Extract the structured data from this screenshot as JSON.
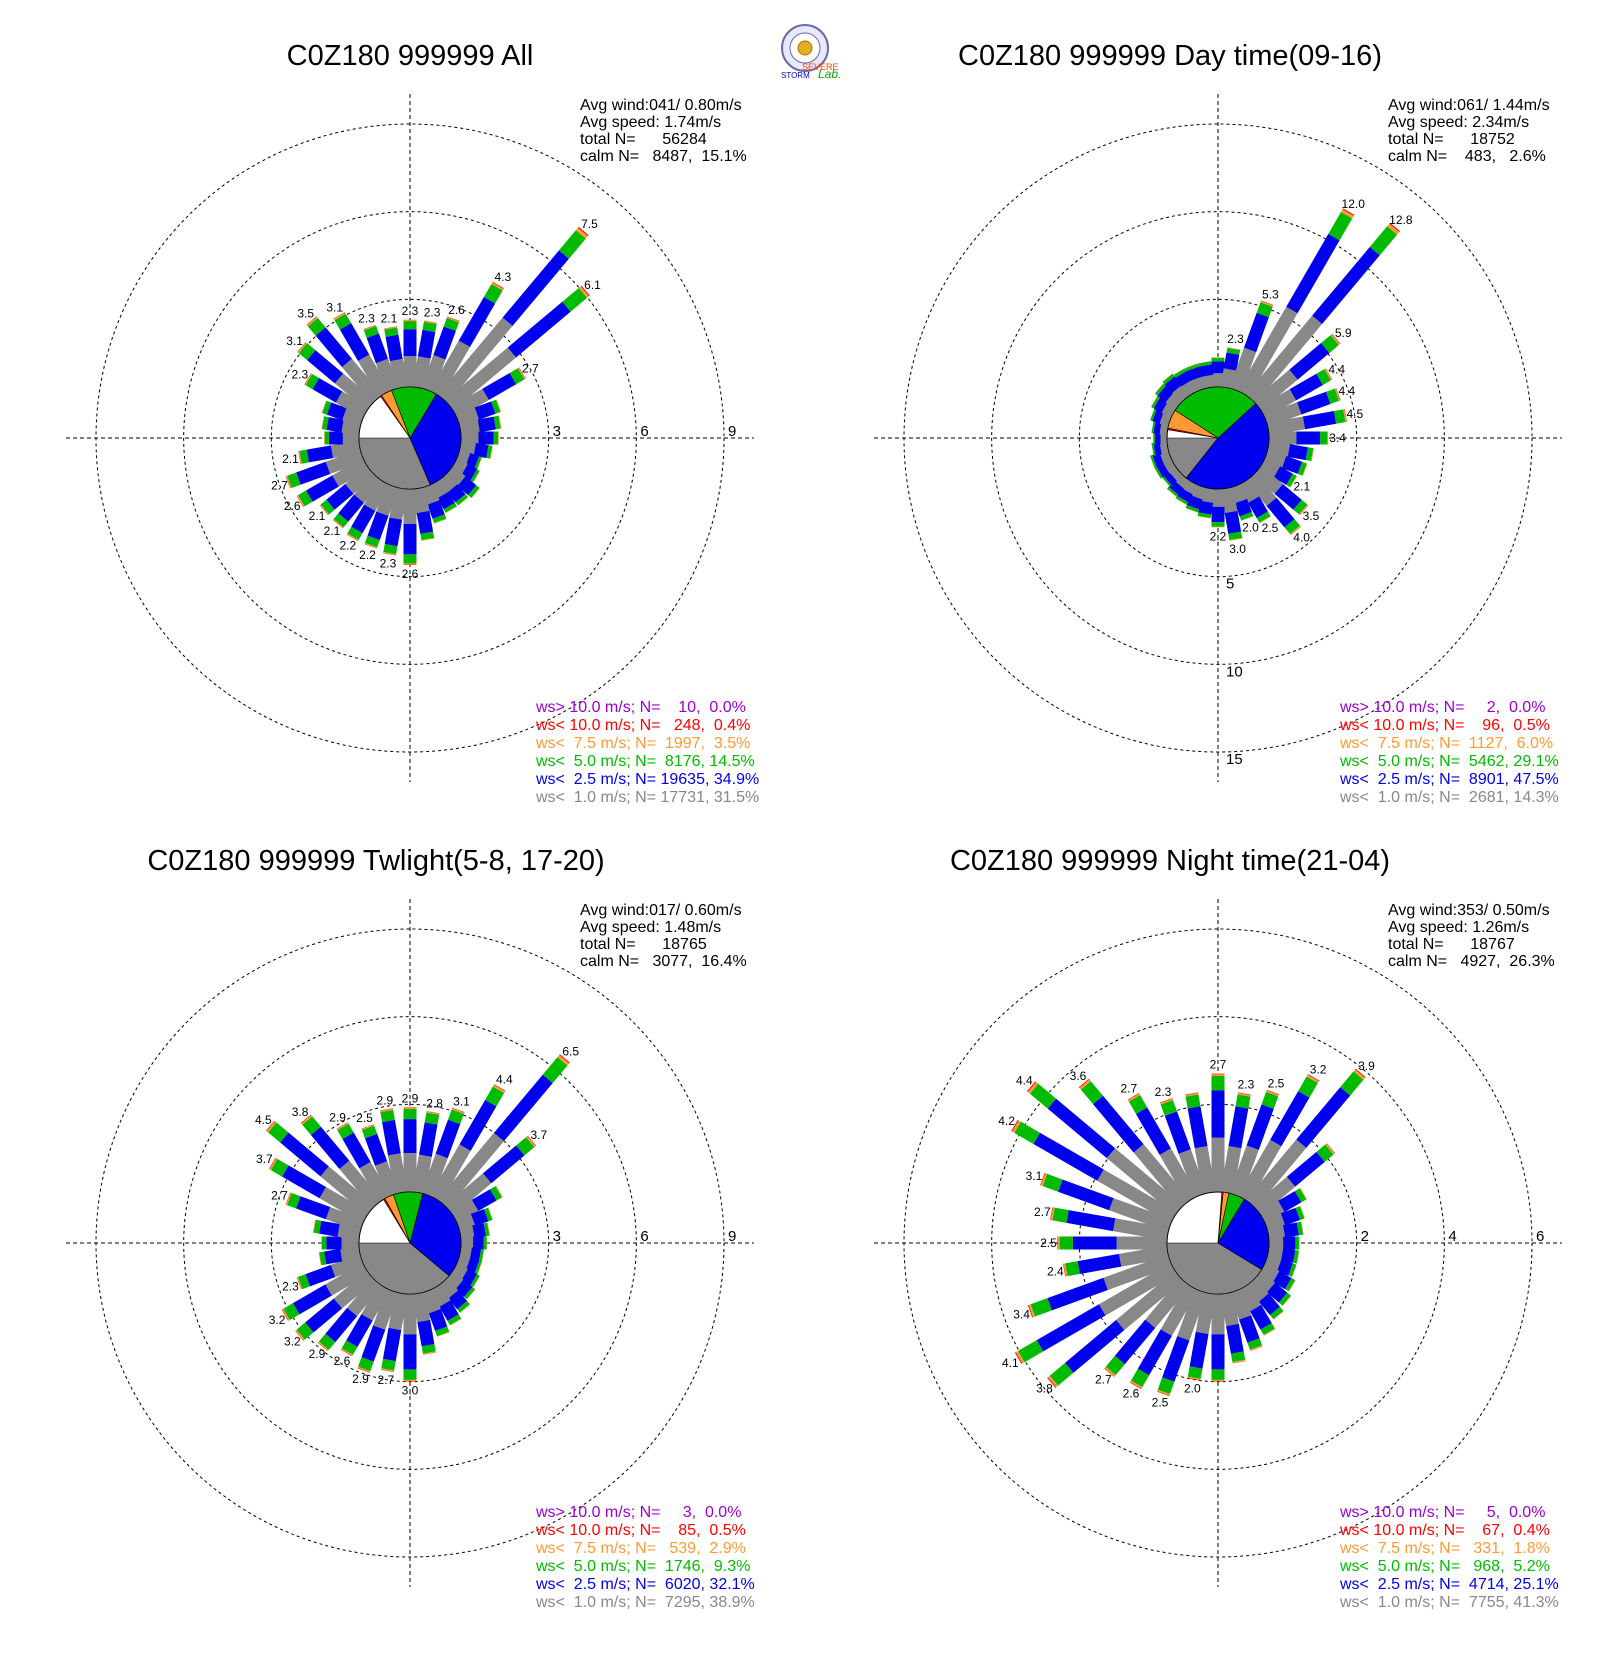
{
  "chart_data": [
    {
      "type": "wind-rose",
      "title": "C0Z180 999999 All",
      "rings": [
        3,
        6,
        9
      ],
      "stats": [
        "Avg wind:041/ 0.80m/s",
        "Avg speed: 1.74m/s",
        "total N=      56284",
        "calm N=   8487,  15.1%"
      ],
      "legend": [
        {
          "text": "ws> 10.0 m/s; N=    10,  0.0%",
          "color": "#9b00d3"
        },
        {
          "text": "ws< 10.0 m/s; N=   248,  0.4%",
          "color": "#ff0000"
        },
        {
          "text": "ws<  7.5 m/s; N=  1997,  3.5%",
          "color": "#ff9933"
        },
        {
          "text": "ws<  5.0 m/s; N=  8176, 14.5%",
          "color": "#00bb00"
        },
        {
          "text": "ws<  2.5 m/s; N= 19635, 34.9%",
          "color": "#0000ee"
        },
        {
          "text": "ws<  1.0 m/s; N= 17731, 31.5%",
          "color": "#888888"
        }
      ],
      "pie": [
        31.5,
        34.9,
        14.5,
        3.5,
        0.4,
        0.0
      ],
      "directions_deg": [
        0,
        10,
        20,
        30,
        40,
        50,
        60,
        70,
        80,
        90,
        100,
        110,
        120,
        130,
        140,
        150,
        160,
        170,
        180,
        190,
        200,
        210,
        220,
        230,
        240,
        250,
        260,
        270,
        280,
        290,
        300,
        310,
        320,
        330,
        340,
        350
      ],
      "values": [
        2.3,
        2.3,
        2.6,
        4.3,
        7.5,
        6.1,
        2.7,
        1.5,
        1.4,
        1.3,
        1.1,
        0.8,
        0.9,
        1.2,
        1.1,
        1.1,
        1.3,
        1.8,
        2.6,
        2.3,
        2.2,
        2.2,
        2.1,
        2.1,
        2.6,
        2.7,
        2.1,
        1.2,
        1.3,
        1.4,
        2.3,
        3.1,
        3.5,
        3.1,
        2.3,
        2.1
      ],
      "bar_labels": {
        "0": "2.3",
        "10": "2.3",
        "20": "2.6",
        "30": "4.3",
        "40": "7.5",
        "50": "6.1",
        "60": "2.7",
        "180": "2.6",
        "190": "2.3",
        "200": "2.2",
        "210": "2.2",
        "220": "2.1",
        "230": "2.1",
        "240": "2.6",
        "250": "2.7",
        "260": "2.1",
        "300": "2.3",
        "310": "3.1",
        "320": "3.5",
        "330": "3.1",
        "340": "2.3",
        "350": "2.1"
      }
    },
    {
      "type": "wind-rose",
      "title": "C0Z180 999999 Day time(09-16)",
      "rings": [
        5,
        10,
        15
      ],
      "stats": [
        "Avg wind:061/ 1.44m/s",
        "Avg speed: 2.34m/s",
        "total N=      18752",
        "calm N=    483,   2.6%"
      ],
      "legend": [
        {
          "text": "ws> 10.0 m/s; N=     2,  0.0%",
          "color": "#9b00d3"
        },
        {
          "text": "ws< 10.0 m/s; N=    96,  0.5%",
          "color": "#ff0000"
        },
        {
          "text": "ws<  7.5 m/s; N=  1127,  6.0%",
          "color": "#ff9933"
        },
        {
          "text": "ws<  5.0 m/s; N=  5462, 29.1%",
          "color": "#00bb00"
        },
        {
          "text": "ws<  2.5 m/s; N=  8901, 47.5%",
          "color": "#0000ee"
        },
        {
          "text": "ws<  1.0 m/s; N=  2681, 14.3%",
          "color": "#888888"
        }
      ],
      "pie": [
        14.3,
        47.5,
        29.1,
        6.0,
        0.5,
        0.0
      ],
      "directions_deg": [
        0,
        10,
        20,
        30,
        40,
        50,
        60,
        70,
        80,
        90,
        100,
        110,
        120,
        130,
        140,
        150,
        160,
        170,
        180,
        190,
        200,
        210,
        220,
        230,
        240,
        250,
        260,
        270,
        280,
        290,
        300,
        310,
        320,
        330,
        340,
        350
      ],
      "values": [
        1.7,
        2.3,
        5.3,
        12.0,
        12.8,
        5.9,
        4.4,
        4.4,
        4.5,
        3.4,
        2.6,
        2.4,
        2.1,
        3.5,
        4.0,
        2.5,
        2.0,
        3.0,
        2.2,
        1.7,
        1.5,
        1.3,
        1.2,
        1.0,
        1.1,
        1.1,
        0.9,
        0.8,
        0.9,
        1.1,
        1.3,
        1.5,
        1.6,
        1.5,
        1.5,
        1.5
      ],
      "bar_labels": {
        "10": "2.3",
        "20": "5.3",
        "30": "12.0",
        "40": "12.8",
        "50": "5.9",
        "60": "4.4",
        "70": "4.4",
        "80": "4.5",
        "90": "3.4",
        "120": "2.1",
        "130": "3.5",
        "140": "4.0",
        "150": "2.5",
        "160": "2.0",
        "170": "3.0",
        "180": "2.2"
      }
    },
    {
      "type": "wind-rose",
      "title": "C0Z180 999999 Twlight(5-8, 17-20)",
      "rings": [
        3,
        6,
        9
      ],
      "stats": [
        "Avg wind:017/ 0.60m/s",
        "Avg speed: 1.48m/s",
        "total N=      18765",
        "calm N=   3077,  16.4%"
      ],
      "legend": [
        {
          "text": "ws> 10.0 m/s; N=     3,  0.0%",
          "color": "#9b00d3"
        },
        {
          "text": "ws< 10.0 m/s; N=    85,  0.5%",
          "color": "#ff0000"
        },
        {
          "text": "ws<  7.5 m/s; N=   539,  2.9%",
          "color": "#ff9933"
        },
        {
          "text": "ws<  5.0 m/s; N=  1746,  9.3%",
          "color": "#00bb00"
        },
        {
          "text": "ws<  2.5 m/s; N=  6020, 32.1%",
          "color": "#0000ee"
        },
        {
          "text": "ws<  1.0 m/s; N=  7295, 38.9%",
          "color": "#888888"
        }
      ],
      "pie": [
        38.9,
        32.1,
        9.3,
        2.9,
        0.5,
        0.0
      ],
      "directions_deg": [
        0,
        10,
        20,
        30,
        40,
        50,
        60,
        70,
        80,
        90,
        100,
        110,
        120,
        130,
        140,
        150,
        160,
        170,
        180,
        190,
        200,
        210,
        220,
        230,
        240,
        250,
        260,
        270,
        280,
        290,
        300,
        310,
        320,
        330,
        340,
        350
      ],
      "values": [
        2.9,
        2.8,
        3.1,
        4.4,
        6.5,
        3.7,
        1.8,
        1.2,
        1.0,
        0.9,
        0.8,
        0.8,
        0.9,
        1.0,
        1.2,
        1.4,
        1.6,
        2.1,
        3.0,
        2.7,
        2.9,
        2.6,
        2.9,
        3.2,
        3.2,
        2.3,
        1.4,
        1.3,
        1.6,
        2.7,
        3.7,
        4.5,
        3.8,
        2.9,
        2.5,
        2.9
      ],
      "bar_labels": {
        "0": "2.9",
        "10": "2.8",
        "20": "3.1",
        "30": "4.4",
        "40": "6.5",
        "50": "3.7",
        "180": "3.0",
        "190": "2.7",
        "200": "2.9",
        "210": "2.6",
        "220": "2.9",
        "230": "3.2",
        "240": "3.2",
        "250": "2.3",
        "290": "2.7",
        "300": "3.7",
        "310": "4.5",
        "320": "3.8",
        "330": "2.9",
        "340": "2.5",
        "350": "2.9"
      }
    },
    {
      "type": "wind-rose",
      "title": "C0Z180 999999 Night time(21-04)",
      "rings": [
        2,
        4,
        6
      ],
      "stats": [
        "Avg wind:353/ 0.50m/s",
        "Avg speed: 1.26m/s",
        "total N=      18767",
        "calm N=   4927,  26.3%"
      ],
      "legend": [
        {
          "text": "ws> 10.0 m/s; N=     5,  0.0%",
          "color": "#9b00d3"
        },
        {
          "text": "ws< 10.0 m/s; N=    67,  0.4%",
          "color": "#ff0000"
        },
        {
          "text": "ws<  7.5 m/s; N=   331,  1.8%",
          "color": "#ff9933"
        },
        {
          "text": "ws<  5.0 m/s; N=   968,  5.2%",
          "color": "#00bb00"
        },
        {
          "text": "ws<  2.5 m/s; N=  4714, 25.1%",
          "color": "#0000ee"
        },
        {
          "text": "ws<  1.0 m/s; N=  7755, 41.3%",
          "color": "#888888"
        }
      ],
      "pie": [
        41.3,
        25.1,
        5.2,
        1.8,
        0.4,
        0.0
      ],
      "directions_deg": [
        0,
        10,
        20,
        30,
        40,
        50,
        60,
        70,
        80,
        90,
        100,
        110,
        120,
        130,
        140,
        150,
        160,
        170,
        180,
        190,
        200,
        210,
        220,
        230,
        240,
        250,
        260,
        270,
        280,
        290,
        300,
        310,
        320,
        330,
        340,
        350
      ],
      "values": [
        2.7,
        2.3,
        2.5,
        3.2,
        3.9,
        2.2,
        1.1,
        0.9,
        0.8,
        0.7,
        0.7,
        0.7,
        0.8,
        0.9,
        1.0,
        1.2,
        1.4,
        1.6,
        2.0,
        2.0,
        2.5,
        2.6,
        2.7,
        3.8,
        4.1,
        3.4,
        2.4,
        2.5,
        2.7,
        3.1,
        4.2,
        4.4,
        3.6,
        2.7,
        2.3,
        2.3
      ],
      "bar_labels": {
        "0": "2.7",
        "10": "2.3",
        "20": "2.5",
        "30": "3.2",
        "40": "3.9",
        "190": "2.0",
        "200": "2.5",
        "210": "2.6",
        "220": "2.7",
        "230": "3.8",
        "240": "4.1",
        "250": "3.4",
        "260": "2.4",
        "270": "2.5",
        "280": "2.7",
        "290": "3.1",
        "300": "4.2",
        "310": "4.4",
        "320": "3.6",
        "330": "2.7",
        "340": "2.3"
      }
    }
  ],
  "logo": {
    "text_top": "SEVERE",
    "text_mid": "STORM",
    "text_lab": "Lab."
  },
  "colors": {
    "gray": "#888888",
    "blue": "#0000ee",
    "green": "#00bb00",
    "orange": "#ff9933",
    "red": "#ff0000",
    "purple": "#9b00d3",
    "calm": "#ffffff"
  }
}
